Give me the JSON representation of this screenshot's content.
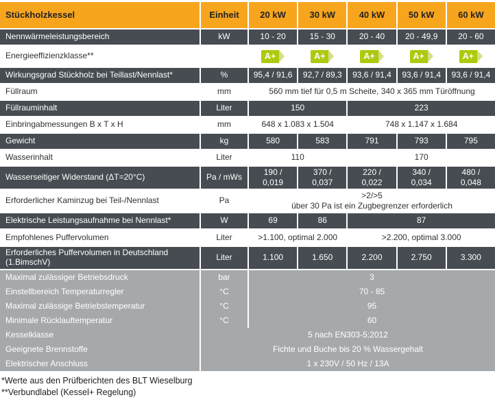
{
  "colors": {
    "accent_orange": "#f8a51e",
    "row_dark": "#474c52",
    "row_gray": "#a6a9ac",
    "badge_green": "#afc90e",
    "badge_arrow_green": "#d8dd86"
  },
  "header": {
    "title": "Stückholzkessel",
    "unit": "Einheit",
    "cols": [
      "20 kW",
      "30 kW",
      "40 kW",
      "50 kW",
      "60 kW"
    ]
  },
  "rows": [
    {
      "label": "Nennwärmeleistungsbereich",
      "unit": "kW",
      "cells": [
        "10 - 20",
        "15 - 30",
        "20 - 40",
        "20 - 49,9",
        "20 - 60"
      ]
    },
    {
      "label": "Energieeffizienzklasse**",
      "unit": "",
      "badge": "A+"
    },
    {
      "label": "Wirkungsgrad Stückholz bei Teillast/Nennlast*",
      "unit": "%",
      "cells": [
        "95,4 / 91,6",
        "92,7 / 89,3",
        "93,6 / 91,4",
        "93,6 / 91,4",
        "93,6 / 91,4"
      ]
    },
    {
      "label": "Füllraum",
      "unit": "mm",
      "cells": [
        "560 mm tief für 0,5 m Scheite, 340 x 365 mm Türöffnung"
      ]
    },
    {
      "label": "Füllrauminhalt",
      "unit": "Liter",
      "cells": [
        "150",
        "223"
      ]
    },
    {
      "label": "Einbringabmessungen B x T x H",
      "unit": "mm",
      "cells": [
        "648 x 1.083 x 1.504",
        "748 x 1.147 x 1.684"
      ]
    },
    {
      "label": "Gewicht",
      "unit": "kg",
      "cells": [
        "580",
        "583",
        "791",
        "793",
        "795"
      ]
    },
    {
      "label": "Wasserinhalt",
      "unit": "Liter",
      "cells": [
        "110",
        "170"
      ]
    },
    {
      "label": "Wasserseitiger Widerstand (ΔT=20°C)",
      "unit": "Pa / mWs",
      "cells": [
        "190 /\n0,019",
        "370 /\n0,037",
        "220 /\n0,022",
        "340 /\n0,034",
        "480 /\n0,048"
      ]
    },
    {
      "label": "Erforderlicher Kaminzug bei Teil-/Nennlast",
      "unit": "Pa",
      "cells": [
        ">2/>5\nüber 30 Pa ist ein Zugbegrenzer erforderlich"
      ]
    },
    {
      "label": "Elektrische Leistungsaufnahme bei Nennlast*",
      "unit": "W",
      "cells": [
        "69",
        "86",
        "87"
      ]
    },
    {
      "label": "Empfohlenes Puffervolumen",
      "unit": "Liter",
      "cells": [
        ">1.100, optimal 2.000",
        ">2.200, optimal 3.000"
      ]
    },
    {
      "label": "Erforderliches Puffervolumen in Deutschland (1.BimschV)",
      "unit": "Liter",
      "cells": [
        "1.100",
        "1.650",
        "2.200",
        "2.750",
        "3.300"
      ]
    },
    {
      "label": "Maximal zulässiger Betriebsdruck",
      "unit": "bar",
      "cells": [
        "3"
      ]
    },
    {
      "label": "Einstellbereich Temperaturregler",
      "unit": "°C",
      "cells": [
        "70 - 85"
      ]
    },
    {
      "label": "Maximal zulässige Betriebstemperatur",
      "unit": "°C",
      "cells": [
        "95"
      ]
    },
    {
      "label": "Minimale Rücklauftemperatur",
      "unit": "°C",
      "cells": [
        "60"
      ]
    },
    {
      "label": "Kesselklasse",
      "value": "5 nach EN303-5:2012"
    },
    {
      "label": "Geeignete Brennstoffe",
      "value": "Fichte und Buche bis 20 % Wassergehalt"
    },
    {
      "label": "Elektrischer Anschluss",
      "value": "1 x 230V / 50 Hz / 13A"
    }
  ],
  "footnotes": [
    "*Werte aus den Prüfberichten des BLT Wieselburg",
    "**Verbundlabel (Kessel+ Regelung)"
  ]
}
